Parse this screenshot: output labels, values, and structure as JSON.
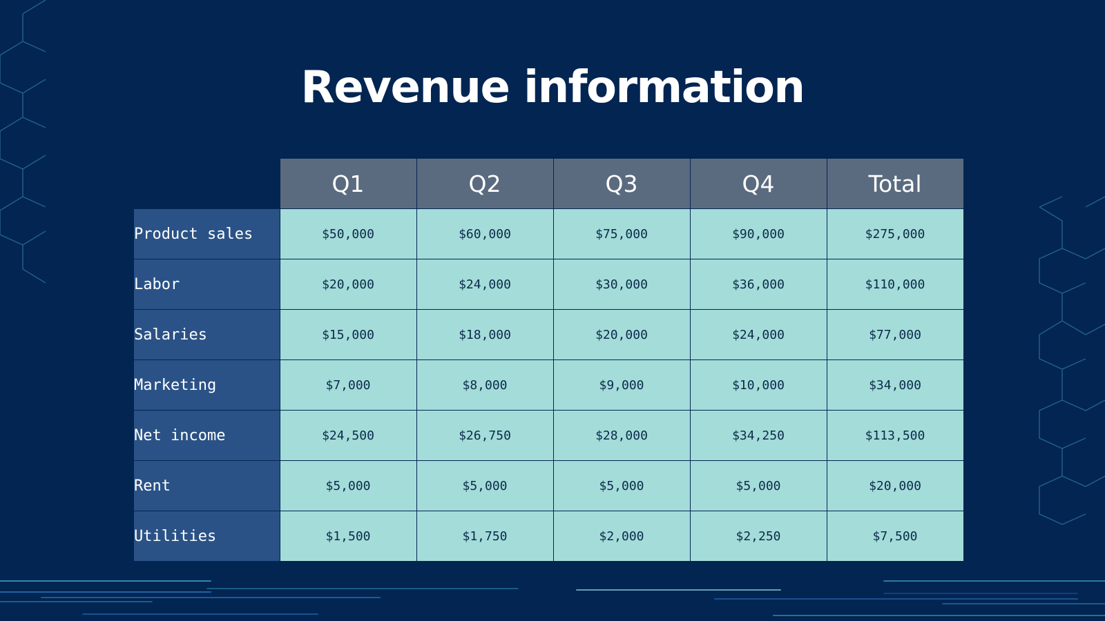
{
  "slide": {
    "title": "Revenue information"
  },
  "colors": {
    "background": "#022552",
    "header_fill": "#5b6b7f",
    "row_label_fill": "#2a5286",
    "cell_fill": "#a4dcd9",
    "cell_text": "#0b2a4a",
    "accent_lines": "#3fa0c8"
  },
  "table": {
    "columns": [
      "Q1",
      "Q2",
      "Q3",
      "Q4",
      "Total"
    ],
    "rows": [
      {
        "label": "Product sales",
        "values": [
          "$50,000",
          "$60,000",
          "$75,000",
          "$90,000",
          "$275,000"
        ]
      },
      {
        "label": "Labor",
        "values": [
          "$20,000",
          "$24,000",
          "$30,000",
          "$36,000",
          "$110,000"
        ]
      },
      {
        "label": "Salaries",
        "values": [
          "$15,000",
          "$18,000",
          "$20,000",
          "$24,000",
          "$77,000"
        ]
      },
      {
        "label": "Marketing",
        "values": [
          "$7,000",
          "$8,000",
          "$9,000",
          "$10,000",
          "$34,000"
        ]
      },
      {
        "label": "Net income",
        "values": [
          "$24,500",
          "$26,750",
          "$28,000",
          "$34,250",
          "$113,500"
        ]
      },
      {
        "label": "Rent",
        "values": [
          "$5,000",
          "$5,000",
          "$5,000",
          "$5,000",
          "$20,000"
        ]
      },
      {
        "label": "Utilities",
        "values": [
          "$1,500",
          "$1,750",
          "$2,000",
          "$2,250",
          "$7,500"
        ]
      }
    ]
  }
}
